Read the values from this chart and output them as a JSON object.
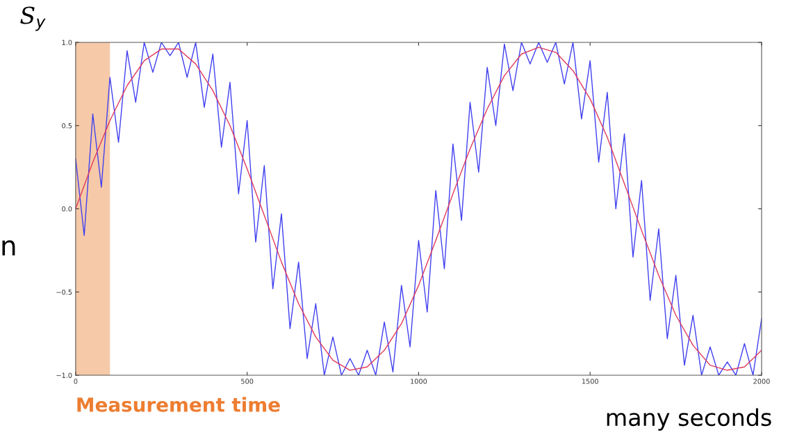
{
  "chart_data": {
    "type": "line",
    "ylabel": "S$_{y}$",
    "xlabel": "many seconds",
    "annotations": [
      "n"
    ],
    "xlim": [
      0,
      2000
    ],
    "ylim": [
      -1.0,
      1.0
    ],
    "xticks": [
      0,
      500,
      1000,
      1500,
      2000
    ],
    "yticks": [
      {
        "value": -1.0,
        "label": "−1.0"
      },
      {
        "value": -0.5,
        "label": "−0.5"
      },
      {
        "value": 0.0,
        "label": "0.0"
      },
      {
        "value": 0.5,
        "label": "0.5"
      },
      {
        "value": 1.0,
        "label": "1.0"
      }
    ],
    "grid": false,
    "bands": [
      {
        "axis": "x",
        "from": 0,
        "to": 100,
        "label": "Measurement time",
        "color": "#f6c9a8"
      }
    ],
    "series": [
      {
        "color": "#4040f0",
        "x": [
          0,
          25,
          50,
          75,
          100,
          125,
          150,
          175,
          200,
          225,
          250,
          275,
          300,
          325,
          350,
          375,
          400,
          425,
          450,
          475,
          500,
          525,
          550,
          575,
          600,
          625,
          650,
          675,
          700,
          725,
          750,
          775,
          800,
          825,
          850,
          875,
          900,
          925,
          950,
          975,
          1000,
          1025,
          1050,
          1075,
          1100,
          1125,
          1150,
          1175,
          1200,
          1225,
          1250,
          1275,
          1300,
          1325,
          1350,
          1375,
          1400,
          1425,
          1450,
          1475,
          1500,
          1525,
          1550,
          1575,
          1600,
          1625,
          1650,
          1675,
          1700,
          1725,
          1750,
          1775,
          1800,
          1825,
          1850,
          1875,
          1900,
          1925,
          1950,
          1975,
          2000
        ],
        "values": [
          0.3,
          -0.16,
          0.57,
          0.13,
          0.79,
          0.4,
          0.95,
          0.64,
          1.0,
          0.82,
          1.0,
          0.92,
          1.0,
          0.79,
          1.0,
          0.61,
          0.93,
          0.37,
          0.76,
          0.09,
          0.53,
          -0.2,
          0.26,
          -0.48,
          -0.03,
          -0.72,
          -0.32,
          -0.9,
          -0.57,
          -1.0,
          -0.77,
          -1.0,
          -0.9,
          -1.0,
          -0.85,
          -1.0,
          -0.68,
          -0.98,
          -0.46,
          -0.83,
          -0.19,
          -0.62,
          0.11,
          -0.36,
          0.39,
          -0.07,
          0.64,
          0.22,
          0.85,
          0.5,
          0.99,
          0.71,
          1.0,
          0.87,
          1.0,
          0.88,
          1.0,
          0.75,
          1.0,
          0.54,
          0.89,
          0.28,
          0.7,
          0.0,
          0.45,
          -0.29,
          0.17,
          -0.55,
          -0.12,
          -0.78,
          -0.4,
          -0.94,
          -0.64,
          -1.0,
          -0.83,
          -1.0,
          -0.92,
          -1.0,
          -0.81,
          -1.0,
          -0.66
        ]
      },
      {
        "color": "#e03a5a",
        "x": [
          0,
          50,
          100,
          150,
          200,
          250,
          300,
          350,
          400,
          450,
          500,
          550,
          600,
          650,
          700,
          750,
          800,
          850,
          900,
          950,
          1000,
          1050,
          1100,
          1150,
          1200,
          1250,
          1300,
          1350,
          1400,
          1450,
          1500,
          1550,
          1600,
          1650,
          1700,
          1750,
          1800,
          1850,
          1900,
          1950,
          2000
        ],
        "values": [
          0,
          0.28,
          0.53,
          0.74,
          0.89,
          0.96,
          0.96,
          0.87,
          0.71,
          0.5,
          0.24,
          -0.04,
          -0.32,
          -0.57,
          -0.77,
          -0.91,
          -0.97,
          -0.95,
          -0.85,
          -0.69,
          -0.46,
          -0.19,
          0.09,
          0.36,
          0.6,
          0.8,
          0.93,
          0.97,
          0.94,
          0.83,
          0.66,
          0.43,
          0.15,
          -0.13,
          -0.4,
          -0.64,
          -0.82,
          -0.94,
          -0.97,
          -0.95,
          -0.85
        ]
      }
    ]
  }
}
